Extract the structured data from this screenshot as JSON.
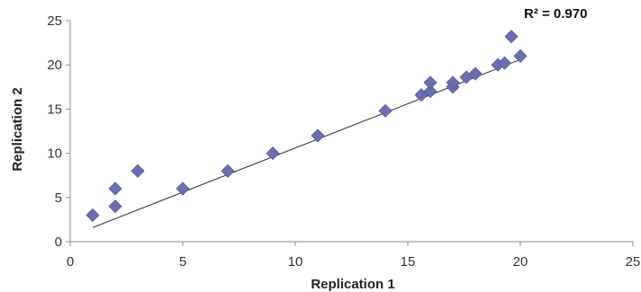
{
  "chart_data": {
    "type": "scatter",
    "xlabel": "Replication 1",
    "ylabel": "Replication 2",
    "annotation": "R² = 0.970",
    "xlim": [
      0,
      25
    ],
    "ylim": [
      0,
      25
    ],
    "x_ticks": [
      0,
      5,
      10,
      15,
      20,
      25
    ],
    "y_ticks": [
      0,
      5,
      10,
      15,
      20,
      25
    ],
    "grid": false,
    "legend": "none",
    "marker": "diamond",
    "colors": {
      "marker": "#6b6fb0",
      "marker_edge": "#55599a",
      "trendline": "#333333",
      "axis": "#8a8a8a"
    },
    "series": [
      {
        "x": [
          1,
          2,
          2,
          3,
          5,
          7,
          9,
          11,
          14,
          15.6,
          16,
          16,
          17,
          17,
          17.6,
          18,
          19,
          19.3,
          19.6,
          20
        ],
        "y": [
          3,
          4,
          6,
          8,
          6,
          8,
          10,
          12,
          14.8,
          16.6,
          17,
          18,
          17.5,
          18,
          18.6,
          19,
          20,
          20.2,
          23.2,
          21
        ]
      }
    ],
    "trendline": {
      "type": "linear",
      "slope": 1.0,
      "intercept": 0.6
    }
  }
}
